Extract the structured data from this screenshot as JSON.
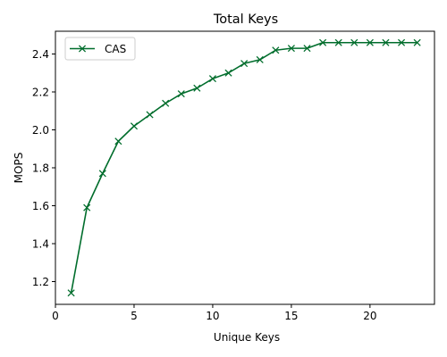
{
  "chart_data": {
    "type": "line",
    "title": "Total Keys",
    "xlabel": "Unique Keys",
    "ylabel": "MOPS",
    "xlim": [
      0.0,
      24.1
    ],
    "ylim": [
      1.08,
      2.52
    ],
    "xticks": [
      0,
      5,
      10,
      15,
      20
    ],
    "yticks": [
      1.2,
      1.4,
      1.6,
      1.8,
      2.0,
      2.2,
      2.4
    ],
    "grid": false,
    "legend_position": "top-left",
    "series": [
      {
        "name": "CAS",
        "color": "#006d2c",
        "marker": "x",
        "x": [
          1,
          2,
          3,
          4,
          5,
          6,
          7,
          8,
          9,
          10,
          11,
          12,
          13,
          14,
          15,
          16,
          17,
          18,
          19,
          20,
          21,
          22,
          23
        ],
        "y": [
          1.14,
          1.59,
          1.77,
          1.94,
          2.02,
          2.08,
          2.14,
          2.19,
          2.22,
          2.27,
          2.3,
          2.35,
          2.37,
          2.42,
          2.43,
          2.43,
          2.46,
          2.46,
          2.46,
          2.46,
          2.46,
          2.46,
          2.46
        ]
      }
    ]
  }
}
